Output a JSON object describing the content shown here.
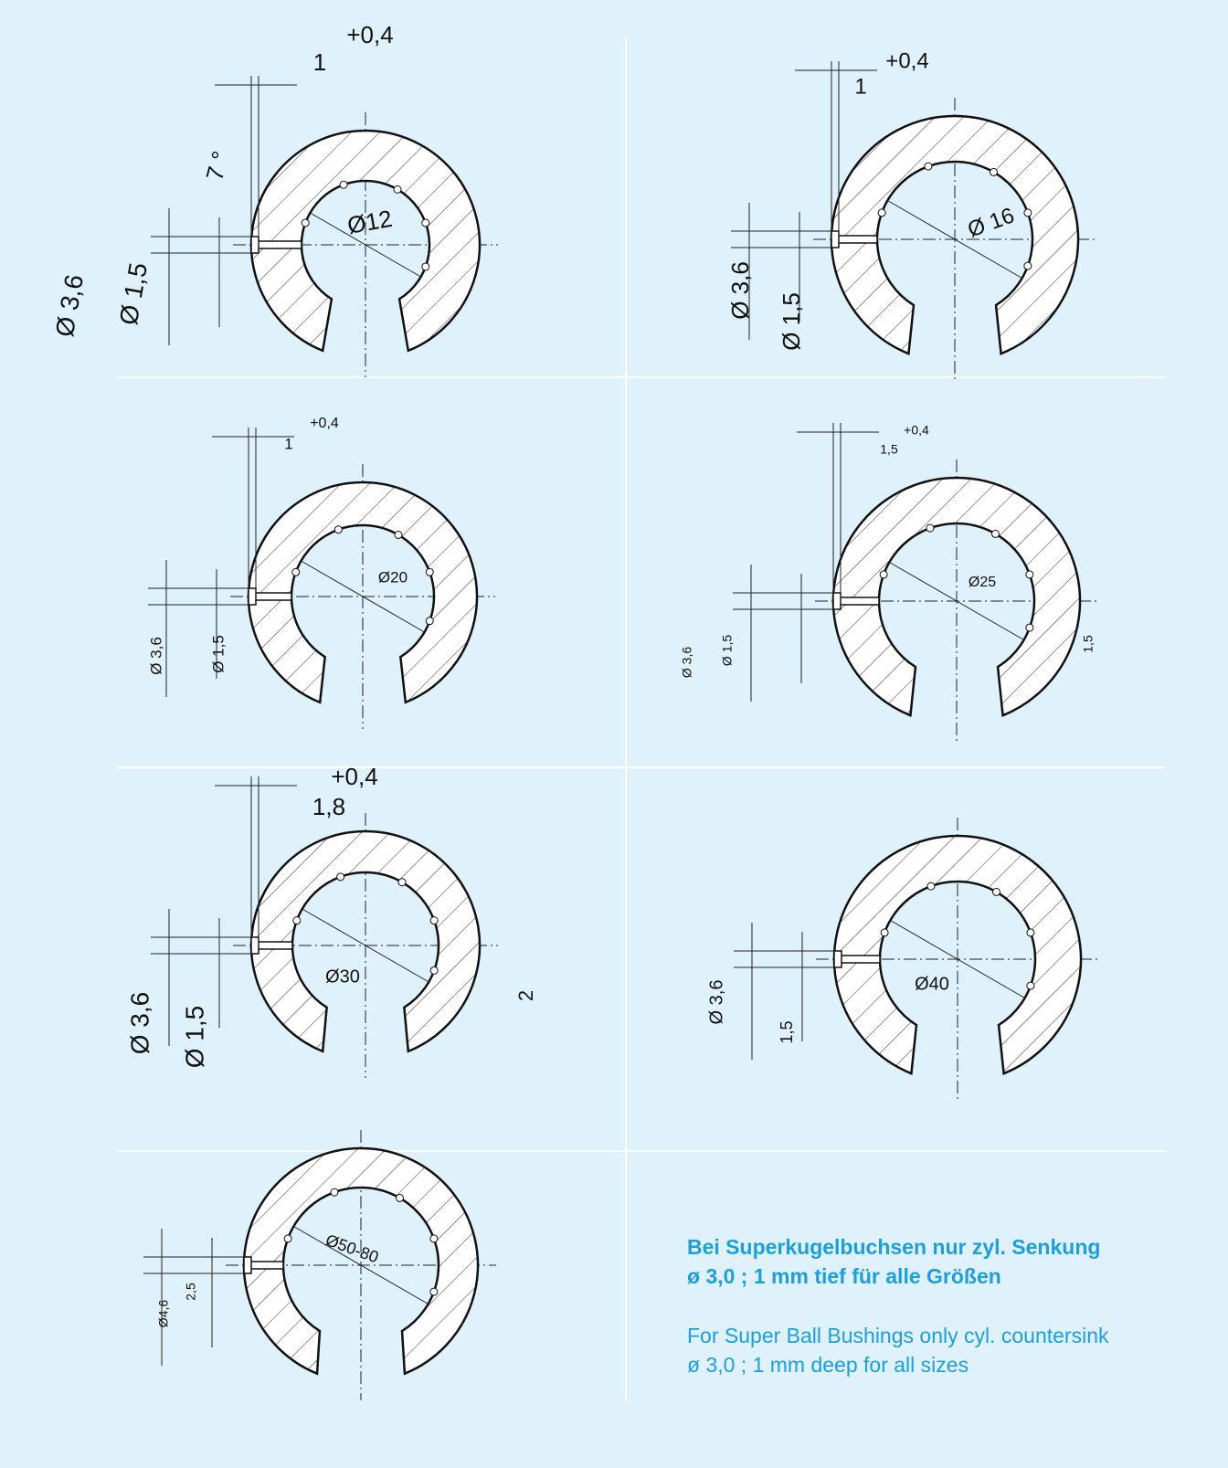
{
  "drawings": [
    {
      "labels": [
        "+0,4",
        "1",
        "7 °",
        "Ø12",
        "Ø 3,6",
        "Ø 1,5"
      ]
    },
    {
      "labels": [
        "+0,4",
        "1",
        "Ø 16",
        "Ø 3,6",
        "Ø 1,5"
      ]
    },
    {
      "labels": [
        "+0,4",
        "1",
        "Ø20",
        "Ø 3,6",
        "Ø 1,5"
      ]
    },
    {
      "labels": [
        "+0,4",
        "1,5",
        "Ø25",
        "Ø 3,6",
        "Ø 1,5",
        "1,5"
      ]
    },
    {
      "labels": [
        "+0,4",
        "1,8",
        "Ø30",
        "Ø 3,6",
        "Ø 1,5",
        "2"
      ]
    },
    {
      "labels": [
        "Ø 3,6",
        "1,5",
        "Ø40"
      ]
    },
    {
      "labels": [
        "Ø50-80",
        "Ø4,6",
        "2,5"
      ]
    }
  ],
  "note": {
    "de": [
      "Bei Superkugelbuchsen nur zyl. Senkung",
      "ø 3,0 ; 1 mm tief für alle Größen"
    ],
    "en": [
      "For Super Ball Bushings only cyl. countersink",
      "ø 3,0 ; 1 mm deep for all sizes"
    ]
  }
}
